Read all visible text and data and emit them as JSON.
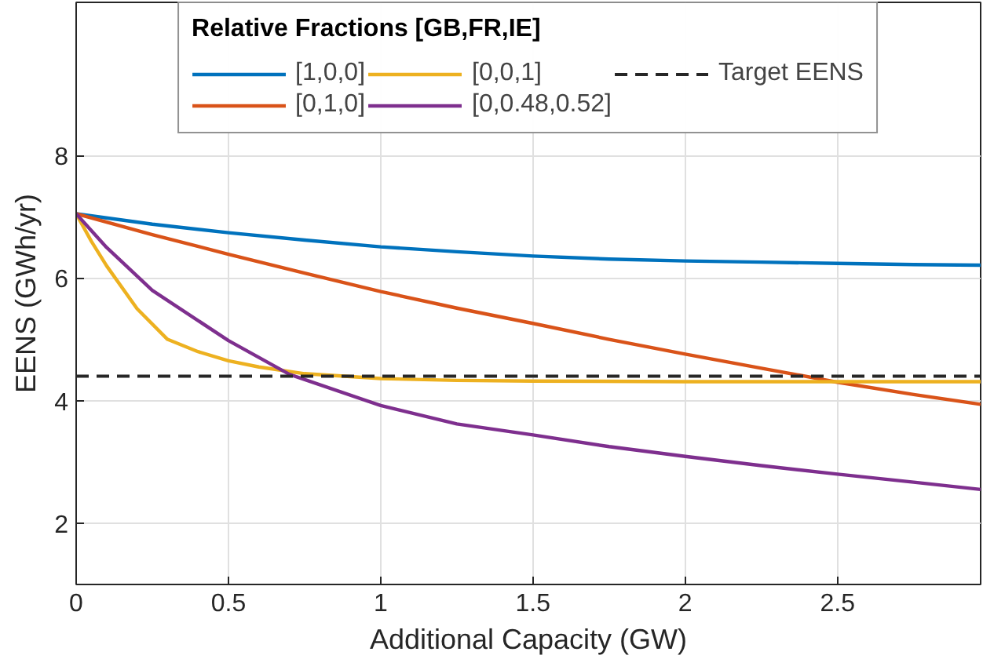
{
  "chart_data": {
    "type": "line",
    "xlabel": "Additional Capacity (GW)",
    "ylabel": "EENS (GWh/yr)",
    "legend_title": "Relative Fractions [GB,FR,IE]",
    "xlim": [
      0,
      2.97
    ],
    "ylim": [
      1,
      10.5
    ],
    "xticks": [
      0,
      0.5,
      1,
      1.5,
      2,
      2.5
    ],
    "yticks": [
      2,
      4,
      6,
      8
    ],
    "grid": true,
    "legend": "top",
    "line_style": "solid",
    "series": [
      {
        "name": "[1,0,0]",
        "color": "#0072bd",
        "x": [
          0,
          0.25,
          0.5,
          0.75,
          1,
          1.25,
          1.5,
          1.75,
          2,
          2.25,
          2.5,
          2.75,
          2.97
        ],
        "values": [
          7.05,
          6.88,
          6.74,
          6.62,
          6.51,
          6.43,
          6.36,
          6.31,
          6.28,
          6.26,
          6.24,
          6.22,
          6.21
        ]
      },
      {
        "name": "[0,1,0]",
        "color": "#d95319",
        "x": [
          0,
          0.25,
          0.5,
          0.75,
          1,
          1.25,
          1.5,
          1.75,
          2,
          2.25,
          2.5,
          2.75,
          2.97
        ],
        "values": [
          7.05,
          6.71,
          6.39,
          6.08,
          5.78,
          5.51,
          5.26,
          5.0,
          4.76,
          4.53,
          4.3,
          4.1,
          3.94
        ]
      },
      {
        "name": "[0,0,1]",
        "color": "#edb120",
        "x": [
          0,
          0.05,
          0.1,
          0.2,
          0.3,
          0.4,
          0.5,
          0.6,
          0.75,
          1,
          1.25,
          1.5,
          2,
          2.97
        ],
        "values": [
          7.05,
          6.6,
          6.2,
          5.5,
          5.0,
          4.8,
          4.65,
          4.55,
          4.44,
          4.36,
          4.33,
          4.32,
          4.31,
          4.31
        ]
      },
      {
        "name": "[0,0.48,0.52]",
        "color": "#7e2f8e",
        "x": [
          0,
          0.1,
          0.25,
          0.5,
          0.7,
          1,
          1.25,
          1.5,
          1.75,
          2,
          2.25,
          2.5,
          2.75,
          2.97
        ],
        "values": [
          7.05,
          6.5,
          5.8,
          4.98,
          4.43,
          3.92,
          3.62,
          3.44,
          3.25,
          3.09,
          2.94,
          2.8,
          2.67,
          2.55
        ]
      }
    ],
    "ref_lines": [
      {
        "axis": "y",
        "value": 4.4,
        "label": "Target EENS",
        "color": "#262626",
        "line_style": "dashed"
      }
    ]
  }
}
